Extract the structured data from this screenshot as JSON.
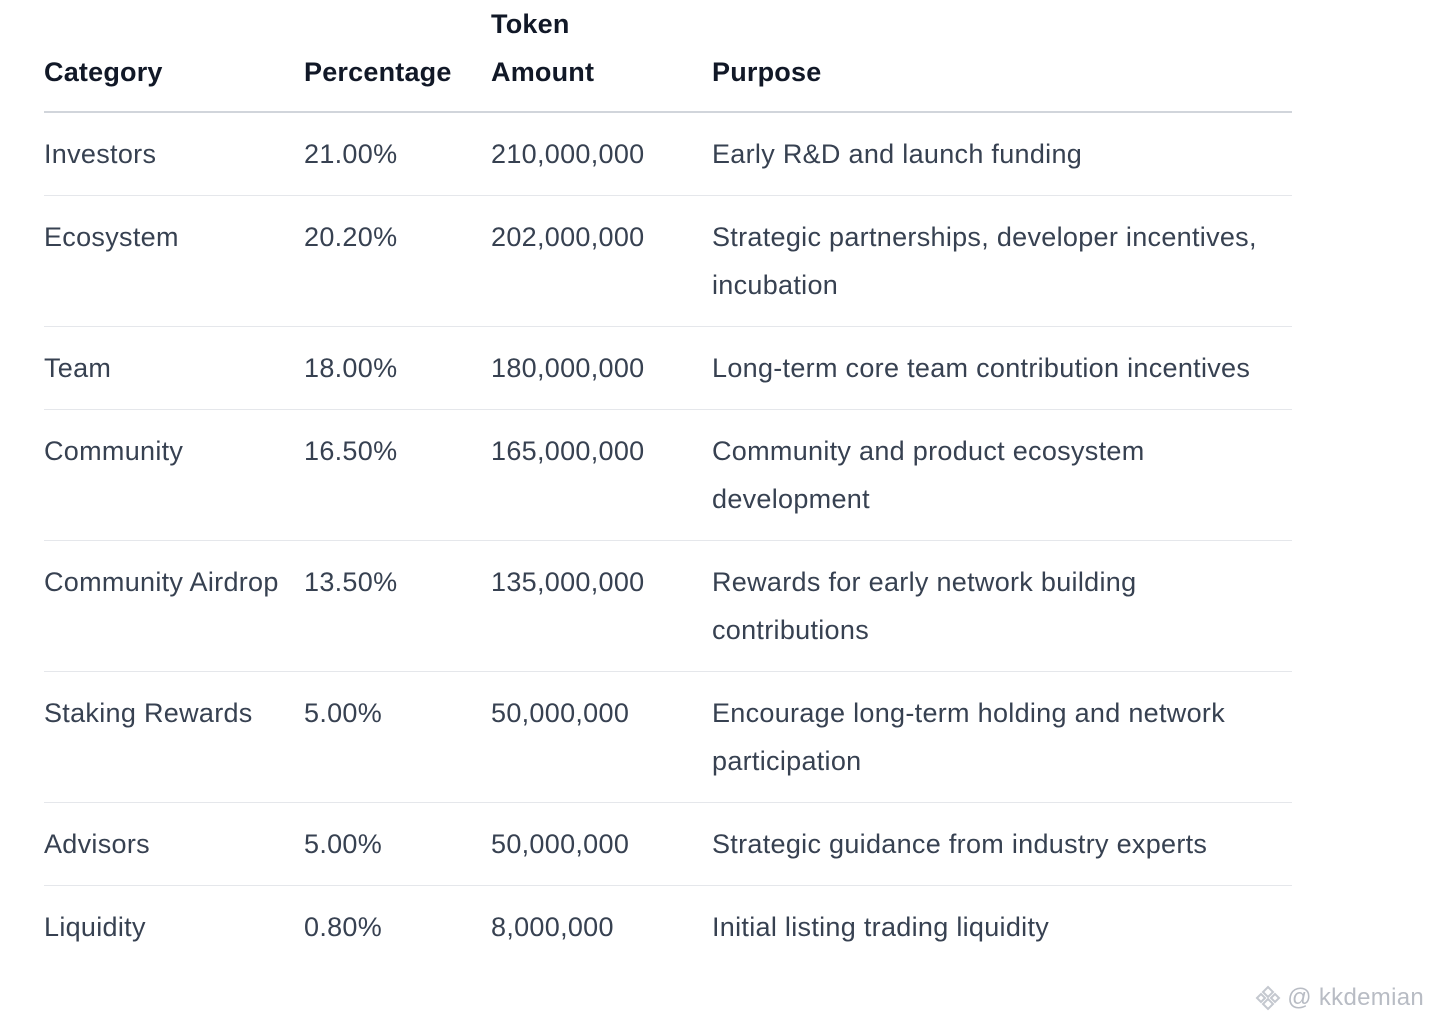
{
  "table": {
    "headers": {
      "category": "Category",
      "percentage": "Percentage",
      "token_amount": "Token\nAmount",
      "purpose": "Purpose"
    },
    "rows": [
      {
        "category": "Investors",
        "percentage": "21.00%",
        "amount": "210,000,000",
        "purpose": "Early R&D and launch funding"
      },
      {
        "category": "Ecosystem",
        "percentage": "20.20%",
        "amount": "202,000,000",
        "purpose": "Strategic partnerships, developer incentives, incubation"
      },
      {
        "category": "Team",
        "percentage": "18.00%",
        "amount": "180,000,000",
        "purpose": "Long-term core team contribution incentives"
      },
      {
        "category": "Community",
        "percentage": "16.50%",
        "amount": "165,000,000",
        "purpose": "Community and product ecosystem development"
      },
      {
        "category": "Community Airdrop",
        "percentage": "13.50%",
        "amount": "135,000,000",
        "purpose": "Rewards for early network building contributions"
      },
      {
        "category": "Staking Rewards",
        "percentage": "5.00%",
        "amount": "50,000,000",
        "purpose": "Encourage long-term holding and network participation"
      },
      {
        "category": "Advisors",
        "percentage": "5.00%",
        "amount": "50,000,000",
        "purpose": "Strategic guidance from industry experts"
      },
      {
        "category": "Liquidity",
        "percentage": "0.80%",
        "amount": "8,000,000",
        "purpose": "Initial listing trading liquidity"
      }
    ]
  },
  "watermark": {
    "icon": "binance-logo-icon",
    "text": "@ kkdemian"
  }
}
